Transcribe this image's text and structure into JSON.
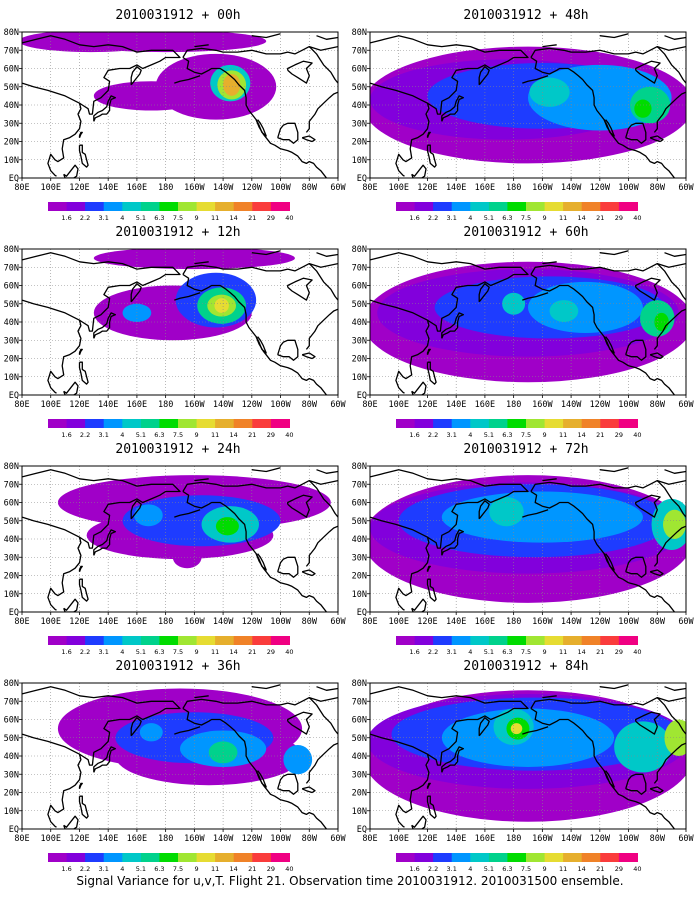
{
  "figure": {
    "caption": "Signal Variance for u,v,T. Flight 21. Observation time 2010031912. 2010031500 ensemble.",
    "colorbar_labels": [
      "1.6",
      "2.2",
      "3.1",
      "4",
      "5.1",
      "6.3",
      "7.5",
      "9",
      "11",
      "14",
      "21",
      "29",
      "40"
    ],
    "colorbar_colors": [
      "#a000c8",
      "#8200dc",
      "#1e3cff",
      "#0096ff",
      "#00c8c8",
      "#00d28c",
      "#00dc00",
      "#a0e632",
      "#e6dc32",
      "#e6af2d",
      "#f08228",
      "#fa3c3c",
      "#f00082"
    ],
    "lon_labels": [
      "80E",
      "100E",
      "120E",
      "140E",
      "160E",
      "180",
      "160W",
      "140W",
      "120W",
      "100W",
      "80W",
      "60W"
    ],
    "lat_labels": [
      "80N",
      "70N",
      "60N",
      "50N",
      "40N",
      "30N",
      "20N",
      "10N",
      "EQ"
    ],
    "lon_range": [
      80,
      300
    ],
    "lat_range": [
      0,
      80
    ],
    "projection": "cylindrical",
    "gridlines": "dotted",
    "panels": [
      {
        "title": "2010031912 + 00h",
        "forecast_hour": 0
      },
      {
        "title": "2010031912 + 48h",
        "forecast_hour": 48
      },
      {
        "title": "2010031912 + 12h",
        "forecast_hour": 12
      },
      {
        "title": "2010031912 + 60h",
        "forecast_hour": 60
      },
      {
        "title": "2010031912 + 24h",
        "forecast_hour": 24
      },
      {
        "title": "2010031912 + 72h",
        "forecast_hour": 72
      },
      {
        "title": "2010031912 + 36h",
        "forecast_hour": 36
      },
      {
        "title": "2010031912 + 84h",
        "forecast_hour": 84
      }
    ]
  }
}
